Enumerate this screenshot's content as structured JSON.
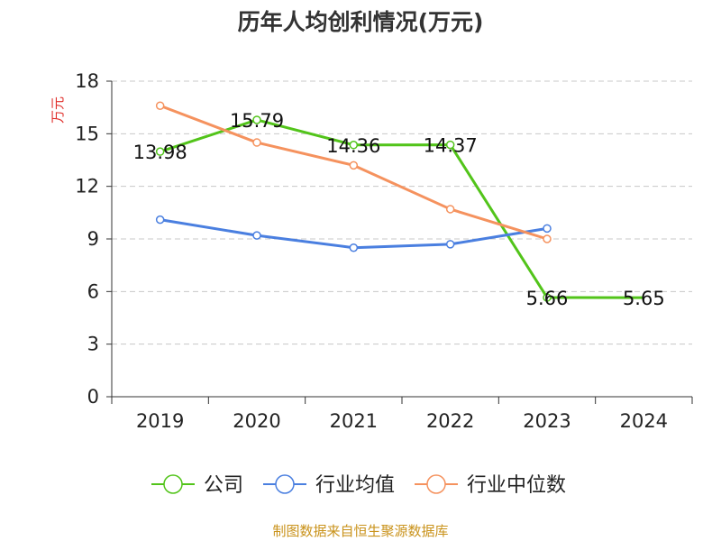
{
  "chart_data": {
    "type": "line",
    "title": "历年人均创利情况(万元)",
    "ylabel": "万元",
    "ylim": [
      0,
      18
    ],
    "yticks": [
      0,
      3,
      6,
      9,
      12,
      15,
      18
    ],
    "categories": [
      "2019",
      "2020",
      "2021",
      "2022",
      "2023",
      "2024"
    ],
    "grid": true,
    "legend_position": "bottom",
    "series": [
      {
        "name": "公司",
        "color": "#52c41a",
        "values": [
          13.98,
          15.79,
          14.36,
          14.37,
          5.66,
          5.65
        ],
        "labels": [
          "13.98",
          "15.79",
          "14.36",
          "14.37",
          "5.66",
          "5.65"
        ],
        "last_marker": false
      },
      {
        "name": "行业均值",
        "color": "#4a7fe0",
        "values": [
          10.1,
          9.2,
          8.5,
          8.7,
          9.6,
          null
        ],
        "labels": null,
        "last_marker": true
      },
      {
        "name": "行业中位数",
        "color": "#f5925e",
        "values": [
          16.6,
          14.5,
          13.2,
          10.7,
          9.0,
          null
        ],
        "labels": null,
        "last_marker": true
      }
    ]
  },
  "footer": {
    "source": "制图数据来自恒生聚源数据库"
  }
}
